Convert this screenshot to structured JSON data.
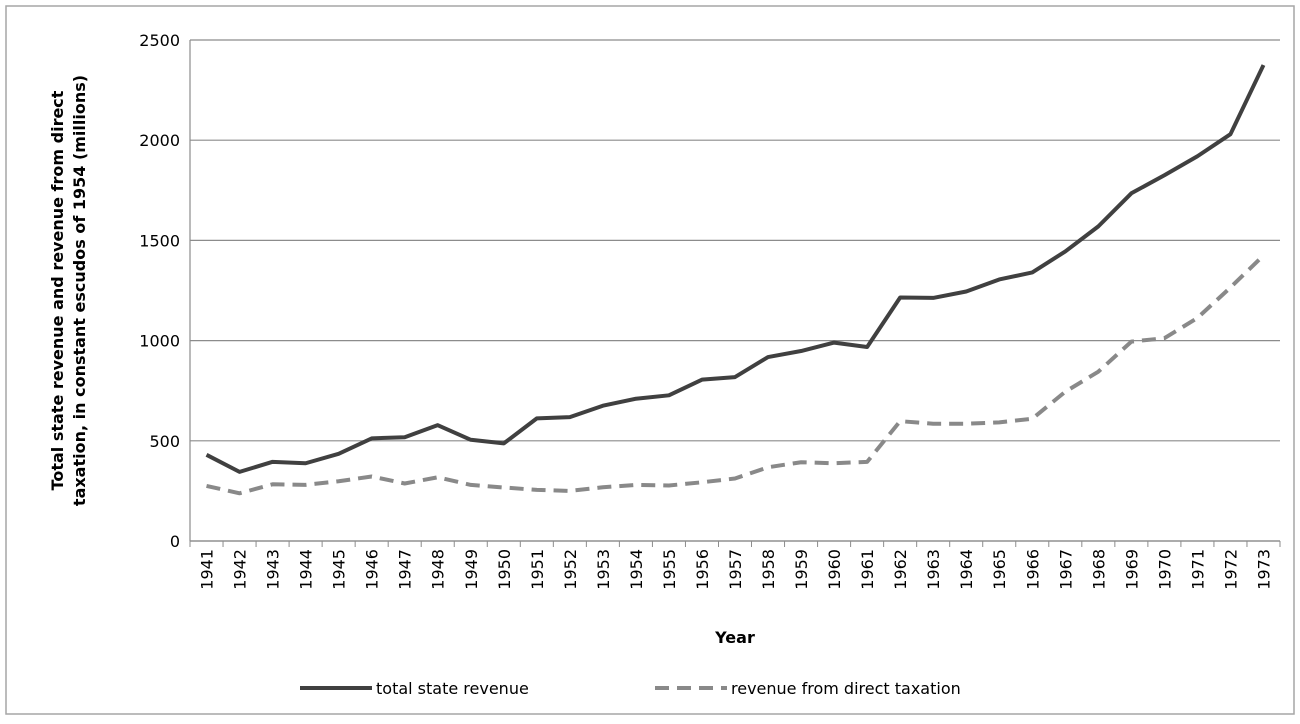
{
  "chart_data": {
    "type": "line",
    "y_label": [
      "Total state revenue and revenue from direct",
      "taxation, in constant escudos of 1954 (millions)"
    ],
    "x_label": "Year",
    "categories": [
      "1941",
      "1942",
      "1943",
      "1944",
      "1945",
      "1946",
      "1947",
      "1948",
      "1949",
      "1950",
      "1951",
      "1952",
      "1953",
      "1954",
      "1955",
      "1956",
      "1957",
      "1958",
      "1959",
      "1960",
      "1961",
      "1962",
      "1963",
      "1964",
      "1965",
      "1966",
      "1967",
      "1968",
      "1969",
      "1970",
      "1971",
      "1972",
      "1973"
    ],
    "series": [
      {
        "name": "total state revenue",
        "color": "#404040",
        "line_style": "solid",
        "values": [
          430,
          345,
          395,
          388,
          435,
          512,
          518,
          578,
          505,
          487,
          612,
          618,
          675,
          710,
          727,
          805,
          818,
          918,
          948,
          990,
          968,
          1215,
          1213,
          1245,
          1305,
          1340,
          1445,
          1570,
          1735,
          1825,
          1920,
          2030,
          2375
        ]
      },
      {
        "name": "revenue from direct taxation",
        "color": "#898989",
        "line_style": "dashed",
        "values": [
          275,
          238,
          283,
          280,
          298,
          322,
          287,
          318,
          280,
          267,
          255,
          250,
          268,
          280,
          277,
          293,
          312,
          368,
          393,
          388,
          395,
          598,
          585,
          585,
          592,
          610,
          745,
          845,
          995,
          1012,
          1113,
          1265,
          1425
        ]
      }
    ],
    "ylim": [
      0,
      2500
    ],
    "yticks": [
      0,
      500,
      1000,
      1500,
      2000,
      2500
    ],
    "grid": true,
    "legend": "bottom"
  }
}
